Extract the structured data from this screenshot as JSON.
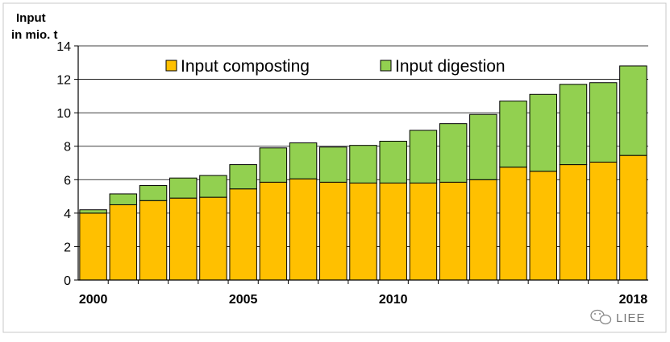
{
  "chart_data": {
    "type": "bar",
    "stacked": true,
    "title": "",
    "ylabel_line1": "Input",
    "ylabel_line2": "in mio. t",
    "xlabel": "",
    "ylim": [
      0,
      14
    ],
    "yticks": [
      0,
      2,
      4,
      6,
      8,
      10,
      12,
      14
    ],
    "categories": [
      2000,
      2001,
      2002,
      2003,
      2004,
      2005,
      2006,
      2007,
      2008,
      2009,
      2010,
      2011,
      2012,
      2013,
      2014,
      2015,
      2016,
      2017,
      2018
    ],
    "x_tick_labels": [
      "2000",
      "2005",
      "2010",
      "2018"
    ],
    "series": [
      {
        "name": "Input composting",
        "color": "#FFC000",
        "values": [
          4.0,
          4.5,
          4.75,
          4.9,
          4.95,
          5.45,
          5.85,
          6.05,
          5.85,
          5.8,
          5.8,
          5.8,
          5.85,
          6.0,
          6.75,
          6.5,
          6.9,
          7.05,
          7.45
        ]
      },
      {
        "name": "Input digestion",
        "color": "#92D050",
        "values": [
          0.2,
          0.65,
          0.9,
          1.2,
          1.3,
          1.45,
          2.05,
          2.15,
          2.1,
          2.25,
          2.5,
          3.15,
          3.5,
          3.9,
          3.95,
          4.6,
          4.8,
          4.75,
          5.35
        ]
      }
    ],
    "legend": [
      {
        "label": "Input composting",
        "color": "#FFC000"
      },
      {
        "label": "Input digestion",
        "color": "#92D050"
      }
    ],
    "legend_position": "top",
    "grid": true
  },
  "watermark": {
    "text": "LIEE",
    "icon": "wechat-icon"
  }
}
